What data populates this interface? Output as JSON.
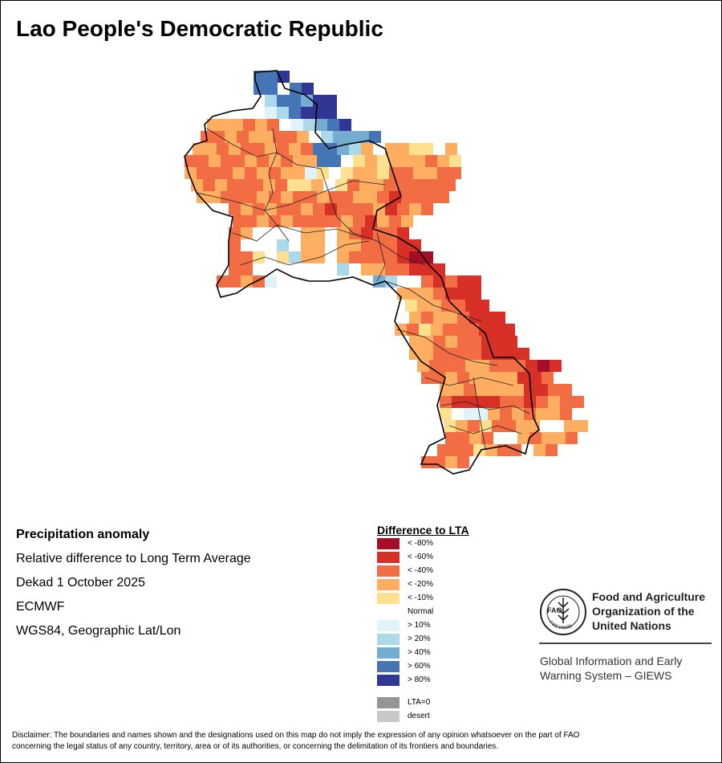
{
  "title": "Lao People's Democratic Republic",
  "info": {
    "heading": "Precipitation anomaly",
    "lines": [
      "Relative difference to Long Term Average",
      "Dekad 1 October 2025",
      "ECMWF",
      "WGS84, Geographic Lat/Lon"
    ]
  },
  "legend": {
    "title": "Difference to LTA",
    "items": [
      {
        "label": "< -80%",
        "color": "#a50f26"
      },
      {
        "label": "< -60%",
        "color": "#d73027"
      },
      {
        "label": "< -40%",
        "color": "#f26d43"
      },
      {
        "label": "< -20%",
        "color": "#fdae61"
      },
      {
        "label": "< -10%",
        "color": "#fee090"
      },
      {
        "label": "Normal",
        "color": "#ffffff"
      },
      {
        "label": "> 10%",
        "color": "#e0f3f8"
      },
      {
        "label": "> 20%",
        "color": "#abd9e9"
      },
      {
        "label": "> 40%",
        "color": "#74add1"
      },
      {
        "label": "> 60%",
        "color": "#4575b4"
      },
      {
        "label": "> 80%",
        "color": "#313695"
      },
      {
        "label": "LTA=0",
        "color": "#969696"
      },
      {
        "label": "desert",
        "color": "#c8c8c8"
      }
    ]
  },
  "fao": {
    "name": [
      "Food and Agriculture",
      "Organization of the",
      "United Nations"
    ],
    "logo_text": "FAO",
    "logo_motto": "FIAT PANIS",
    "giews": [
      "Global Information and Early",
      "Warning System – GIEWS"
    ]
  },
  "disclaimer": [
    "Disclaimer: The boundaries and names shown and the designations used on this map do not imply the expression of any opinion whatsoever on the part of FAO",
    "concerning the legal status of any country, territory, area or of its authorities, or concerning the delimitation of its frontiers and boundaries."
  ]
}
